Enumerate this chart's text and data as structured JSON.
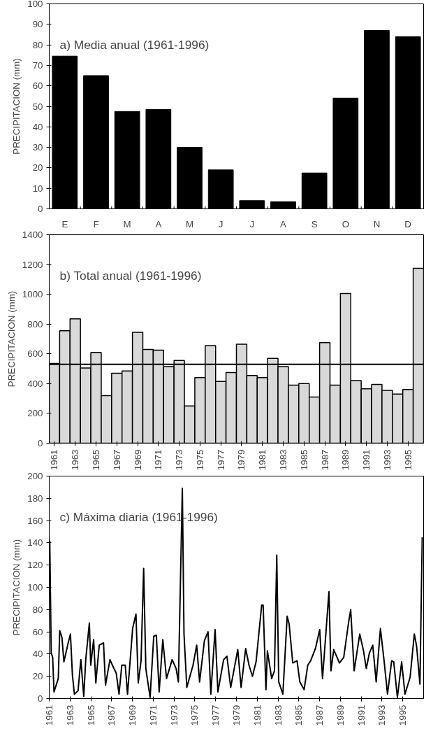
{
  "chart_data": [
    {
      "type": "bar",
      "title": "a) Media anual (1961-1996)",
      "ylabel": "PRECIPITACION (mm)",
      "categories": [
        "E",
        "F",
        "M",
        "A",
        "M",
        "J",
        "J",
        "A",
        "S",
        "O",
        "N",
        "D"
      ],
      "values": [
        74.5,
        65,
        47.5,
        48.5,
        30,
        19,
        4,
        3.5,
        17.5,
        54,
        87,
        84
      ],
      "color": "#000000",
      "ylim": [
        0,
        100
      ],
      "yticks": [
        0,
        10,
        20,
        30,
        40,
        50,
        60,
        70,
        80,
        90,
        100
      ],
      "grid": false
    },
    {
      "type": "bar",
      "title": "b) Total anual (1961-1996)",
      "ylabel": "PRECIPITACION (mm)",
      "x": [
        1961,
        1962,
        1963,
        1964,
        1965,
        1966,
        1967,
        1968,
        1969,
        1970,
        1971,
        1972,
        1973,
        1974,
        1975,
        1976,
        1977,
        1978,
        1979,
        1980,
        1981,
        1982,
        1983,
        1984,
        1985,
        1986,
        1987,
        1988,
        1989,
        1990,
        1991,
        1992,
        1993,
        1994,
        1995,
        1996
      ],
      "values": [
        535,
        755,
        835,
        505,
        610,
        320,
        470,
        485,
        745,
        630,
        625,
        515,
        555,
        250,
        440,
        655,
        415,
        475,
        665,
        455,
        440,
        570,
        515,
        390,
        400,
        310,
        675,
        390,
        1005,
        420,
        365,
        395,
        355,
        330,
        360,
        1175
      ],
      "color": "#d9d9d9",
      "xlim": [
        1960.5,
        1996.5
      ],
      "xticks": [
        1961,
        1963,
        1965,
        1967,
        1969,
        1971,
        1973,
        1975,
        1977,
        1979,
        1981,
        1983,
        1985,
        1987,
        1989,
        1991,
        1993,
        1995
      ],
      "ylim": [
        0,
        1400
      ],
      "yticks": [
        0,
        200,
        400,
        600,
        800,
        1000,
        1200,
        1400
      ],
      "ref_lines": [
        {
          "axis": "y",
          "value": 530,
          "color": "#000000"
        }
      ],
      "grid": false
    },
    {
      "type": "line",
      "title": "c) Máxima diaria     (1961-1996)",
      "ylabel": "PRECIPITACION (mm)",
      "x": [
        1961.05,
        1961.19,
        1961.33,
        1961.46,
        1961.87,
        1962.01,
        1962.22,
        1962.41,
        1962.82,
        1963.04,
        1963.23,
        1963.42,
        1963.77,
        1964.04,
        1964.32,
        1964.51,
        1964.86,
        1964.99,
        1965.27,
        1965.48,
        1965.81,
        1966.22,
        1966.41,
        1966.84,
        1967.17,
        1967.44,
        1967.71,
        1967.98,
        1968.31,
        1968.53,
        1969.02,
        1969.34,
        1969.56,
        1969.83,
        1970.08,
        1970.29,
        1970.7,
        1971.05,
        1971.3,
        1971.57,
        1971.92,
        1972.28,
        1972.82,
        1973.2,
        1973.42,
        1973.8,
        1973.96,
        1974.23,
        1974.83,
        1975.18,
        1975.46,
        1975.92,
        1976.27,
        1976.54,
        1976.95,
        1977.22,
        1977.77,
        1978.09,
        1978.45,
        1979.13,
        1979.45,
        1979.89,
        1980.21,
        1980.54,
        1980.89,
        1981.43,
        1981.57,
        1981.84,
        1981.98,
        1982.39,
        1982.66,
        1982.88,
        1983.07,
        1983.47,
        1983.88,
        1984.07,
        1984.42,
        1984.83,
        1985.1,
        1985.51,
        1985.86,
        1986.14,
        1986.6,
        1987.01,
        1987.28,
        1987.9,
        1988.09,
        1988.36,
        1988.91,
        1989.32,
        1989.78,
        1989.99,
        1990.32,
        1990.86,
        1991.22,
        1991.49,
        1991.79,
        1992.11,
        1992.44,
        1992.85,
        1993.2,
        1993.53,
        1993.93,
        1994.13,
        1994.48,
        1994.89,
        1995.21,
        1995.7,
        1996.11,
        1996.33,
        1996.65,
        1996.87
      ],
      "values": [
        142,
        41,
        37,
        6,
        18,
        61,
        55,
        33,
        50,
        58,
        21,
        4,
        7,
        35,
        2,
        35,
        68,
        30,
        53,
        14,
        48,
        50,
        12,
        35,
        28,
        23,
        4,
        30,
        30,
        4,
        63,
        76,
        14,
        34,
        117,
        27,
        1,
        56,
        57,
        6,
        53,
        18,
        35,
        27,
        15,
        189,
        58,
        10,
        30,
        48,
        15,
        52,
        60,
        4,
        62,
        6,
        35,
        38,
        10,
        44,
        10,
        45,
        30,
        20,
        33,
        84,
        84,
        8,
        43,
        18,
        25,
        129,
        15,
        4,
        74,
        67,
        32,
        34,
        15,
        8,
        30,
        34,
        45,
        62,
        18,
        96,
        25,
        44,
        32,
        37,
        68,
        80,
        25,
        58,
        43,
        27,
        41,
        48,
        15,
        63,
        34,
        4,
        34,
        33,
        1,
        33,
        4,
        19,
        58,
        47,
        13,
        145
      ],
      "color": "#000000",
      "xlim": [
        1961,
        1997
      ],
      "xticks": [
        1961,
        1963,
        1965,
        1967,
        1969,
        1971,
        1973,
        1975,
        1977,
        1979,
        1981,
        1983,
        1985,
        1987,
        1989,
        1991,
        1993,
        1995
      ],
      "ylim": [
        0,
        200
      ],
      "yticks": [
        0,
        20,
        40,
        60,
        80,
        100,
        120,
        140,
        160,
        180,
        200
      ],
      "marker": "none",
      "line_style": "solid",
      "grid": false
    }
  ]
}
